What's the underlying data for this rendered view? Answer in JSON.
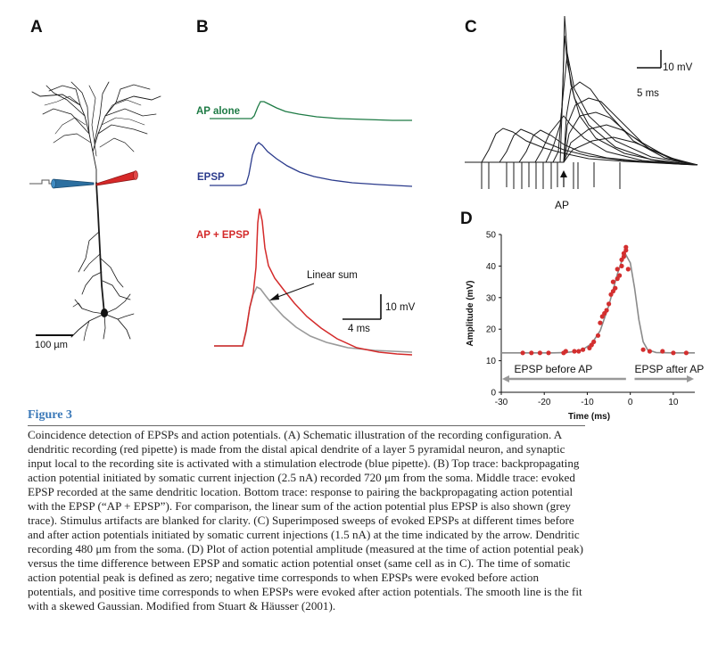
{
  "panels": {
    "a": {
      "letter": "A",
      "scale_label": "100 µm"
    },
    "b": {
      "letter": "B",
      "trace_top_label": "AP alone",
      "trace_mid_label": "EPSP",
      "trace_bottom_label": "AP + EPSP",
      "linear_sum_label": "Linear sum",
      "scale_v": "10 mV",
      "scale_t": "4 ms"
    },
    "c": {
      "letter": "C",
      "scale_v": "10 mV",
      "scale_t": "5 ms",
      "ap_label": "AP"
    },
    "d": {
      "letter": "D"
    }
  },
  "colors": {
    "ap_alone": "#1e7b45",
    "epsp": "#2b3b8c",
    "ap_epsp": "#d42b2b",
    "linear_sum": "#9a9a9a",
    "stim_pipette": "#2c6fa0",
    "rec_pipette": "#d62828",
    "points": "#d32f2f",
    "fit": "#8a8a8a",
    "caption_title": "#3a78b8"
  },
  "chart_data": {
    "type": "scatter",
    "title": "",
    "xlabel": "Time (ms)",
    "ylabel": "Amplitude (mV)",
    "xlim": [
      -30,
      15
    ],
    "ylim": [
      0,
      50
    ],
    "xticks": [
      -30,
      -20,
      -10,
      0,
      10
    ],
    "yticks": [
      0,
      10,
      20,
      30,
      40,
      50
    ],
    "annotations": [
      "EPSP before AP",
      "EPSP after AP"
    ],
    "series": [
      {
        "x": [
          -25,
          -23,
          -21,
          -19,
          -15.5,
          -15,
          -13,
          -12,
          -11,
          -9.5,
          -9,
          -8.5,
          -7.5,
          -7,
          -6.5,
          -6,
          -5.5,
          -5,
          -4.5,
          -4,
          -4,
          -3.5,
          -3,
          -3,
          -2.5,
          -2,
          -2,
          -1.5,
          -1.5,
          -1,
          -1,
          -0.5,
          3,
          4.5,
          7.5,
          10,
          13
        ],
        "y": [
          12.5,
          12.5,
          12.5,
          12.5,
          12.5,
          13,
          13,
          13,
          13.5,
          14,
          15,
          16,
          18,
          22,
          24,
          25,
          26,
          28,
          31,
          32,
          35,
          33,
          36,
          39,
          37,
          40,
          42,
          44,
          43,
          45,
          46,
          39,
          13.5,
          13,
          13,
          12.5,
          12.5
        ]
      }
    ],
    "fit": {
      "x": [
        -30,
        -26,
        -22,
        -18,
        -15,
        -13,
        -11,
        -9,
        -7,
        -5,
        -4,
        -3,
        -2,
        -1,
        0,
        1,
        2,
        3,
        4,
        6,
        10,
        15
      ],
      "y": [
        12.5,
        12.5,
        12.5,
        12.5,
        12.6,
        12.9,
        13.6,
        15.4,
        19.5,
        27.5,
        32.5,
        37.5,
        41.5,
        43.5,
        41,
        33,
        23,
        16,
        13.5,
        12.6,
        12.5,
        12.5
      ]
    }
  },
  "caption": {
    "figure_title": "Figure 3",
    "text": "Coincidence detection of EPSPs and action potentials. (A) Schematic illustration of the recording configuration. A dendritic recording (red pipette) is made from the distal apical dendrite of a layer 5 pyramidal neuron, and synaptic input local to the recording site is activated with a stimulation electrode (blue pipette). (B) Top trace: backpropagating action potential initiated by somatic current injection (2.5 nA) recorded 720 μm from the soma. Middle trace: evoked EPSP recorded at the same dendritic location. Bottom trace: response to pairing the backpropagating action potential with the EPSP (“AP + EPSP”). For comparison, the linear sum of the action potential plus EPSP is also shown (grey trace). Stimulus artifacts are blanked for clarity. (C) Superimposed sweeps of evoked EPSPs at different times before and after action potentials initiated by somatic current injections (1.5 nA) at the time indicated by the arrow. Dendritic recording 480 μm from the soma. (D) Plot of action potential amplitude (measured at the time of action potential peak) versus the time difference between EPSP and somatic action potential onset (same cell as in C). The time of somatic action potential peak is defined as zero; negative time corresponds to when EPSPs were evoked before action potentials, and positive time corresponds to when EPSPs were evoked after action potentials. The smooth line is the fit with a skewed Gaussian. Modified from Stuart & Häusser (2001)."
  }
}
